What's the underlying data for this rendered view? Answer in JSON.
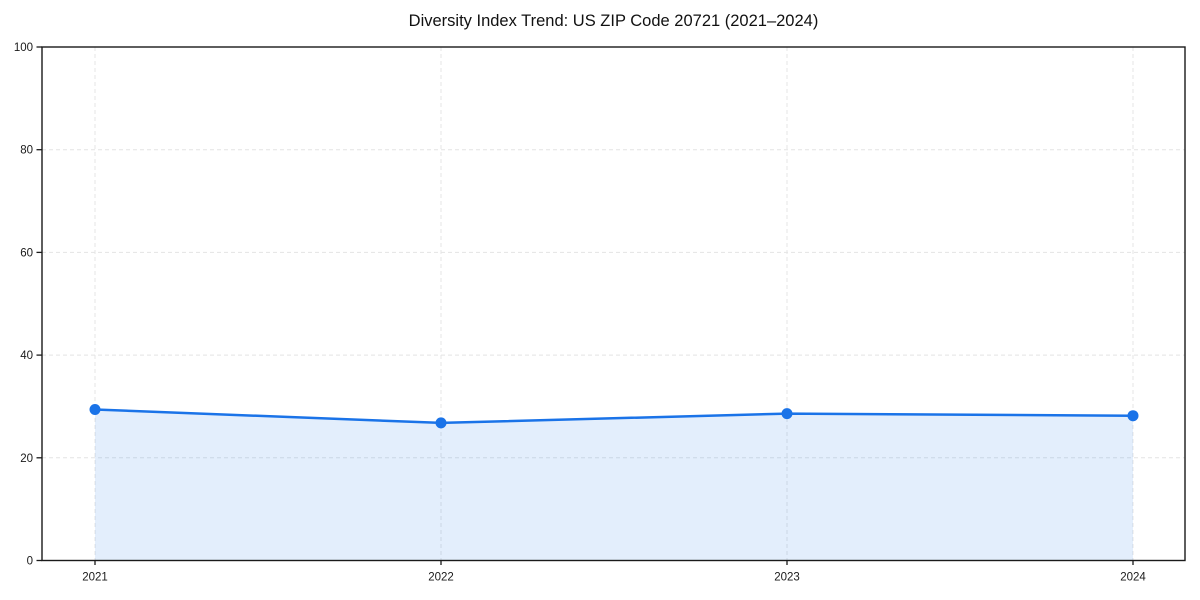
{
  "chart_data": {
    "type": "line",
    "title": "Diversity Index Trend: US ZIP Code 20721 (2021–2024)",
    "x": [
      2021,
      2022,
      2023,
      2024
    ],
    "series": [
      {
        "name": "Diversity Index",
        "values": [
          29.4,
          26.8,
          28.6,
          28.2
        ]
      }
    ],
    "xlabel": "",
    "ylabel": "",
    "ylim": [
      0,
      100
    ],
    "yticks": [
      0,
      20,
      40,
      60,
      80,
      100
    ],
    "xtick_labels": [
      "2021",
      "2022",
      "2023",
      "2024"
    ],
    "grid": "dashed",
    "legend_position": "none",
    "marker": "circle",
    "area_fill": true,
    "colors": {
      "line": "#1a73e8",
      "marker": "#1a73e8",
      "area": "rgba(26,115,232,0.12)",
      "gridline": "#e4e4e4",
      "spine": "#1a1a1a",
      "tick_label": "#1a1a1a",
      "title": "#111111",
      "background": "#ffffff"
    }
  }
}
